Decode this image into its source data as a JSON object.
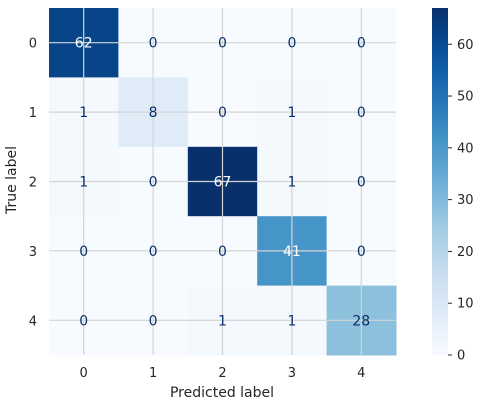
{
  "chart_data": {
    "type": "heatmap",
    "title": "",
    "xlabel": "Predicted label",
    "ylabel": "True label",
    "x_categories": [
      "0",
      "1",
      "2",
      "3",
      "4"
    ],
    "y_categories": [
      "0",
      "1",
      "2",
      "3",
      "4"
    ],
    "matrix": [
      [
        62,
        0,
        0,
        0,
        0
      ],
      [
        1,
        8,
        0,
        1,
        0
      ],
      [
        1,
        0,
        67,
        1,
        0
      ],
      [
        0,
        0,
        0,
        41,
        0
      ],
      [
        0,
        0,
        1,
        1,
        28
      ]
    ],
    "colormap": "Blues",
    "colorbar": {
      "range": [
        0,
        67
      ],
      "ticks": [
        0,
        10,
        20,
        30,
        40,
        50,
        60
      ]
    },
    "grid": true
  }
}
